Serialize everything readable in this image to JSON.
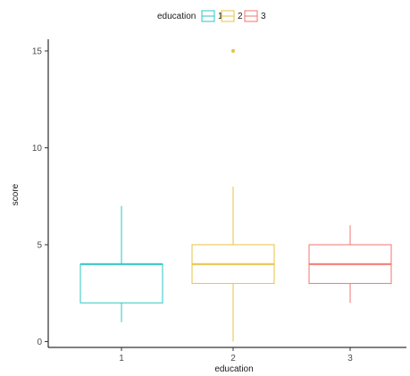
{
  "chart_data": {
    "type": "boxplot",
    "title": "",
    "xlabel": "education",
    "ylabel": "score",
    "ylim": [
      -0.3,
      15.6
    ],
    "yticks": [
      0,
      5,
      10,
      15
    ],
    "categories": [
      "1",
      "2",
      "3"
    ],
    "grid": false,
    "legend": {
      "title": "education",
      "position": "top",
      "entries": [
        "1",
        "2",
        "3"
      ]
    },
    "series": [
      {
        "name": "1",
        "color": "#2EC4C4",
        "min": 1,
        "q1": 2,
        "median": 4,
        "q3": 4,
        "max": 7,
        "outliers": []
      },
      {
        "name": "2",
        "color": "#E7C340",
        "min": 0,
        "q1": 3,
        "median": 4,
        "q3": 5,
        "max": 8,
        "outliers": [
          15
        ]
      },
      {
        "name": "3",
        "color": "#F0766F",
        "min": 2,
        "q1": 3,
        "median": 4,
        "q3": 5,
        "max": 6,
        "outliers": []
      }
    ]
  }
}
